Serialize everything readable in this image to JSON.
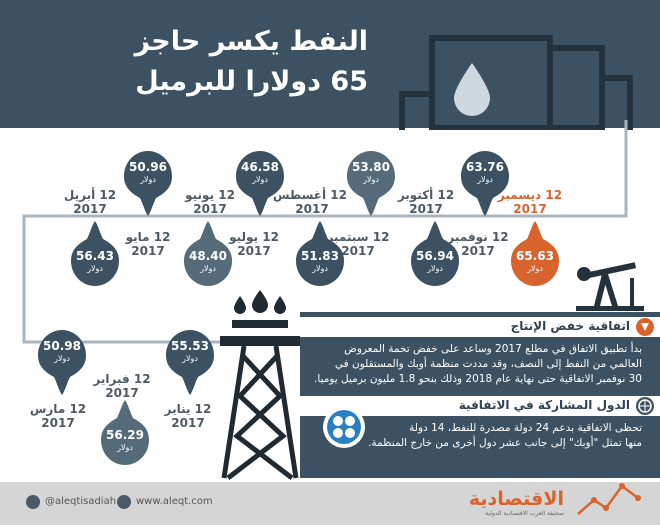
{
  "title": {
    "line1": "النفط يكسر حاجز",
    "line2": "65 دولارا للبرميل"
  },
  "unit": "دولار",
  "colors": {
    "dark": "#3c5263",
    "mid": "#566b7a",
    "orange": "#d9632d",
    "footer": "#d5d5d5"
  },
  "timeline_top": [
    {
      "month": "12 ديسمبر",
      "year": "2017",
      "value": "65.63",
      "highlight": true
    },
    {
      "month": "12 نوفمبر",
      "year": "2017",
      "value": "63.76"
    },
    {
      "month": "12 أكتوبر",
      "year": "2017",
      "value": "56.94"
    },
    {
      "month": "12 سبتمبر",
      "year": "2017",
      "value": "53.80"
    },
    {
      "month": "12 أغسطس",
      "year": "2017",
      "value": "51.83"
    },
    {
      "month": "12 يوليو",
      "year": "2017",
      "value": "46.58"
    },
    {
      "month": "12 يونيو",
      "year": "2017",
      "value": "48.40"
    },
    {
      "month": "12 مايو",
      "year": "2017",
      "value": "50.96"
    },
    {
      "month": "12 أبريل",
      "year": "2017",
      "value": "56.43"
    }
  ],
  "timeline_bottom": [
    {
      "month": "12 مارس",
      "year": "2017",
      "value": "50.98"
    },
    {
      "month": "12 فبراير",
      "year": "2017",
      "value": "56.29"
    },
    {
      "month": "12 يناير",
      "year": "2017",
      "value": "55.53"
    }
  ],
  "section1": {
    "heading": "اتفاقية خفض الإنتاج",
    "line1": "بدأ تطبيق الاتفاق في مطلع 2017 وساعد على خفض تخمة المعروض",
    "line2": "العالمي من النفط إلى النصف، وقد مددت منظمة أوبك والمستقلون في",
    "line3": "30 نوفمبر الاتفاقية حتى نهاية عام 2018 وذلك بنحو 1.8 مليون برميل يوميا."
  },
  "section2": {
    "heading": "الدول المشاركة في الاتفاقية",
    "line1": "تحظى الاتفاقية بدعم 24 دولة مصدرة للنفط، 14 دولة",
    "line2": "منها تمثل \"أوبك\" إلى جانب عشر دول أخرى من خارج المنظمة."
  },
  "footer": {
    "twitter": "@aleqtisadiah",
    "website": "www.aleqt.com",
    "brand": "الاقتصادية",
    "brand_sub": "صحيفة العرب الاقتصادية الدولية"
  }
}
